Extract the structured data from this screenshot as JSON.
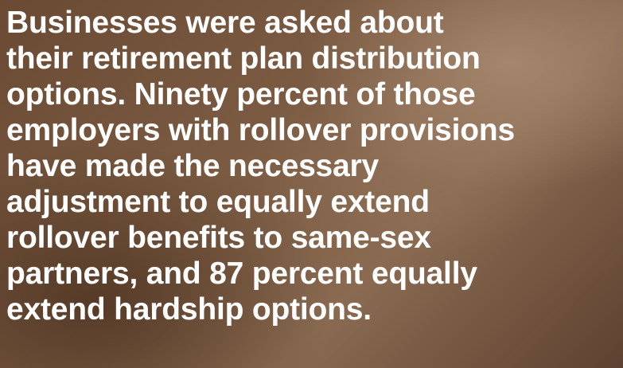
{
  "lines": [
    "Businesses were asked about",
    "their retirement plan distribution",
    "options. Ninety percent of those",
    "employers with rollover provisions",
    "have made the necessary",
    "adjustment to equally extend",
    "rollover benefits to same-sex",
    "partners, and 87 percent equally",
    "extend hardship options."
  ]
}
